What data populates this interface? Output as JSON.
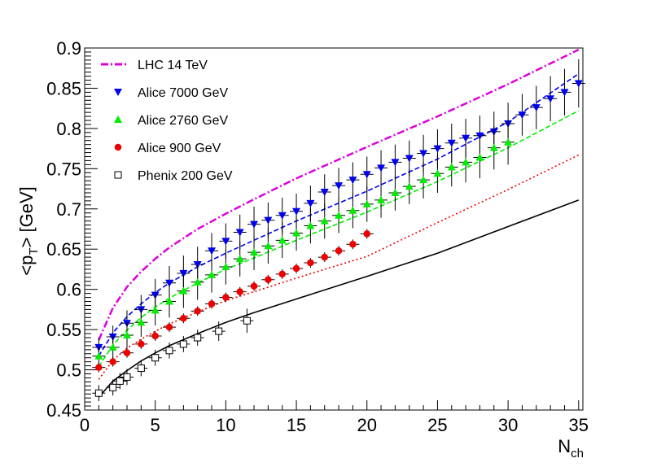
{
  "chart_data": {
    "type": "scatter",
    "ylabel_main": "<p",
    "ylabel_sub": "T",
    "ylabel_rest": "> [GeV]",
    "xlabel_main": "N",
    "xlabel_sub": "ch",
    "xlim": [
      0,
      35.3
    ],
    "ylim": [
      0.45,
      0.9
    ],
    "x_ticks": [
      0,
      5,
      10,
      15,
      20,
      25,
      30,
      35
    ],
    "x_tick_labels": [
      "0",
      "5",
      "10",
      "15",
      "20",
      "25",
      "30",
      "35"
    ],
    "y_ticks": [
      0.45,
      0.5,
      0.55,
      0.6,
      0.65,
      0.7,
      0.75,
      0.8,
      0.85,
      0.9
    ],
    "y_tick_labels": [
      "0.45",
      "0.5",
      "0.55",
      "0.6",
      "0.65",
      "0.7",
      "0.75",
      "0.8",
      "0.85",
      "0.9"
    ],
    "grid": false,
    "legend_position": "top-left",
    "series": [
      {
        "name": "LHC 14 TeV",
        "kind": "curve",
        "color": "#dd00dd",
        "dash": "dashdot",
        "x": [
          1,
          2,
          3,
          4,
          5,
          6,
          8,
          10,
          12,
          15,
          20,
          25,
          30,
          35
        ],
        "y": [
          0.537,
          0.577,
          0.603,
          0.622,
          0.638,
          0.652,
          0.675,
          0.694,
          0.712,
          0.738,
          0.777,
          0.815,
          0.855,
          0.898
        ]
      },
      {
        "name": "Alice 7000 GeV",
        "kind": "points+curve",
        "marker": "triangle-down",
        "color": "#0000ee",
        "dash": "dashed",
        "x": [
          1,
          2,
          3,
          4,
          5,
          6,
          7,
          8,
          9,
          10,
          11,
          12,
          13,
          14,
          15,
          16,
          17,
          18,
          19,
          20,
          21,
          22,
          23,
          24,
          25,
          26,
          27,
          28,
          29,
          30,
          31,
          32,
          33,
          34,
          35
        ],
        "y": [
          0.528,
          0.541,
          0.558,
          0.575,
          0.593,
          0.608,
          0.62,
          0.631,
          0.648,
          0.66,
          0.671,
          0.681,
          0.686,
          0.692,
          0.697,
          0.707,
          0.721,
          0.729,
          0.736,
          0.743,
          0.751,
          0.758,
          0.763,
          0.769,
          0.775,
          0.782,
          0.788,
          0.791,
          0.796,
          0.806,
          0.817,
          0.826,
          0.837,
          0.845,
          0.856
        ],
        "err": [
          0.012,
          0.014,
          0.016,
          0.018,
          0.02,
          0.021,
          0.022,
          0.022,
          0.022,
          0.022,
          0.022,
          0.022,
          0.022,
          0.022,
          0.022,
          0.022,
          0.022,
          0.022,
          0.022,
          0.022,
          0.022,
          0.022,
          0.022,
          0.023,
          0.024,
          0.024,
          0.024,
          0.025,
          0.025,
          0.026,
          0.026,
          0.027,
          0.028,
          0.029,
          0.03
        ],
        "fit_x": [
          1,
          2,
          3,
          4,
          5,
          6,
          8,
          10,
          12,
          15,
          20,
          25,
          30,
          35
        ],
        "fit_y": [
          0.517,
          0.546,
          0.566,
          0.582,
          0.596,
          0.608,
          0.628,
          0.645,
          0.661,
          0.685,
          0.722,
          0.762,
          0.808,
          0.868
        ]
      },
      {
        "name": "Alice 2760 GeV",
        "kind": "points+curve",
        "marker": "triangle-up",
        "color": "#00ee00",
        "dash": "dashed",
        "x": [
          1,
          2,
          3,
          4,
          5,
          6,
          7,
          8,
          9,
          10,
          11,
          12,
          13,
          14,
          15,
          16,
          17,
          18,
          19,
          20,
          21,
          22,
          23,
          24,
          25,
          26,
          27,
          28,
          29,
          30
        ],
        "y": [
          0.517,
          0.528,
          0.543,
          0.559,
          0.574,
          0.585,
          0.598,
          0.609,
          0.618,
          0.628,
          0.638,
          0.646,
          0.654,
          0.661,
          0.67,
          0.679,
          0.685,
          0.692,
          0.698,
          0.706,
          0.711,
          0.72,
          0.728,
          0.736,
          0.744,
          0.752,
          0.758,
          0.764,
          0.776,
          0.783
        ],
        "err": [
          0.012,
          0.014,
          0.016,
          0.018,
          0.019,
          0.02,
          0.021,
          0.022,
          0.022,
          0.022,
          0.022,
          0.022,
          0.022,
          0.022,
          0.022,
          0.022,
          0.022,
          0.022,
          0.022,
          0.022,
          0.022,
          0.022,
          0.022,
          0.023,
          0.024,
          0.024,
          0.025,
          0.026,
          0.027,
          0.028
        ],
        "fit_x": [
          1,
          2,
          3,
          4,
          5,
          6,
          8,
          10,
          12,
          15,
          20,
          25,
          30,
          35
        ],
        "fit_y": [
          0.504,
          0.531,
          0.549,
          0.565,
          0.578,
          0.589,
          0.608,
          0.625,
          0.639,
          0.661,
          0.696,
          0.734,
          0.776,
          0.822
        ]
      },
      {
        "name": "Alice 900 GeV",
        "kind": "points+curve",
        "marker": "circle",
        "color": "#ee0000",
        "dash": "dotted",
        "x": [
          1,
          2,
          3,
          4,
          5,
          6,
          7,
          8,
          9,
          10,
          11,
          12,
          13,
          14,
          15,
          16,
          17,
          18,
          19,
          20
        ],
        "y": [
          0.503,
          0.51,
          0.521,
          0.532,
          0.542,
          0.553,
          0.564,
          0.573,
          0.582,
          0.59,
          0.597,
          0.604,
          0.612,
          0.619,
          0.626,
          0.633,
          0.64,
          0.648,
          0.656,
          0.669
        ],
        "err": [
          0.006,
          0.006,
          0.006,
          0.006,
          0.006,
          0.006,
          0.006,
          0.006,
          0.006,
          0.006,
          0.006,
          0.006,
          0.006,
          0.006,
          0.006,
          0.006,
          0.006,
          0.006,
          0.006,
          0.006
        ],
        "fit_x": [
          1,
          2,
          3,
          4,
          5,
          6,
          8,
          10,
          12,
          15,
          20,
          25,
          30,
          35
        ],
        "fit_y": [
          0.488,
          0.512,
          0.527,
          0.538,
          0.548,
          0.557,
          0.572,
          0.586,
          0.597,
          0.614,
          0.641,
          0.683,
          0.724,
          0.767
        ]
      },
      {
        "name": "Phenix 200 GeV",
        "kind": "points+curve",
        "marker": "open-square",
        "color": "#000000",
        "dash": "solid",
        "x": [
          1,
          2,
          2.5,
          3,
          4,
          5,
          6,
          7,
          8,
          9.5,
          11.5
        ],
        "y": [
          0.471,
          0.478,
          0.486,
          0.491,
          0.502,
          0.515,
          0.524,
          0.532,
          0.54,
          0.548,
          0.561
        ],
        "err": [
          0.01,
          0.01,
          0.01,
          0.01,
          0.01,
          0.01,
          0.01,
          0.01,
          0.01,
          0.012,
          0.015
        ],
        "fit_x": [
          1,
          2,
          3,
          4,
          5,
          6,
          8,
          10,
          12,
          15,
          20,
          25,
          30,
          35
        ],
        "fit_y": [
          0.466,
          0.486,
          0.499,
          0.511,
          0.521,
          0.53,
          0.545,
          0.559,
          0.571,
          0.588,
          0.616,
          0.645,
          0.678,
          0.711
        ]
      }
    ]
  }
}
